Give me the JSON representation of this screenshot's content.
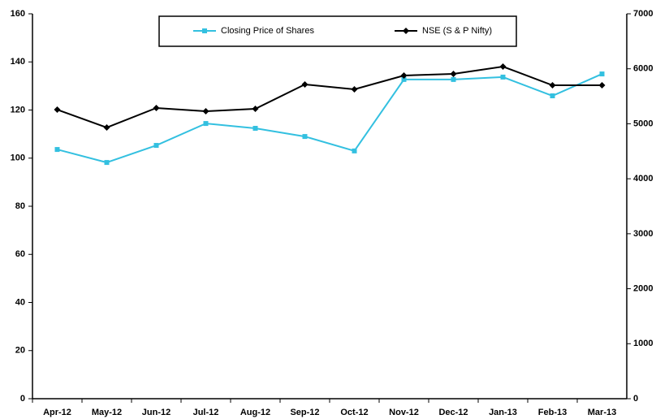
{
  "chart_data": {
    "type": "line",
    "categories": [
      "Apr-12",
      "May-12",
      "Jun-12",
      "Jul-12",
      "Aug-12",
      "Sep-12",
      "Oct-12",
      "Nov-12",
      "Dec-12",
      "Jan-13",
      "Feb-13",
      "Mar-13"
    ],
    "series": [
      {
        "name": "Closing Price of Shares",
        "color": "#33c0e0",
        "marker": "square",
        "values": [
          103.6,
          98.2,
          105.3,
          114.4,
          112.4,
          109,
          103,
          132.7,
          132.7,
          133.7,
          125.9,
          135
        ]
      },
      {
        "name": "NSE (S & P Nifty)",
        "color": "#000000",
        "marker": "diamond",
        "axis": "y2",
        "values": [
          5257,
          4932,
          5287,
          5228,
          5272,
          5715,
          5627,
          5878,
          5907,
          6040,
          5700,
          5700
        ]
      }
    ],
    "ylim": [
      0,
      160
    ],
    "yticks": [
      0,
      20,
      40,
      60,
      80,
      100,
      120,
      140,
      160
    ],
    "y2lim": [
      0,
      7000
    ],
    "y2ticks": [
      0,
      1000,
      2000,
      3000,
      4000,
      5000,
      6000,
      7000
    ],
    "legend": "top"
  }
}
